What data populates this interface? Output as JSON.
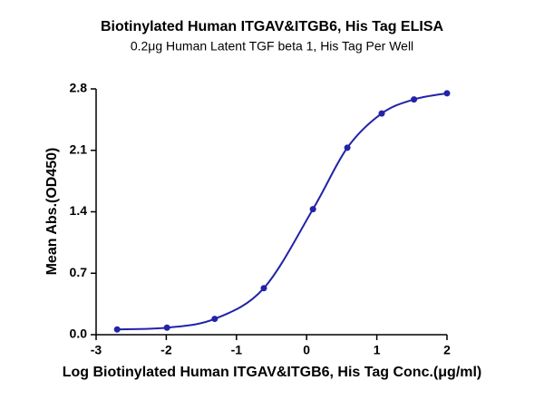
{
  "chart_data": {
    "type": "scatter",
    "title": "Biotinylated Human ITGAV&ITGB6, His Tag ELISA",
    "subtitle": "0.2μg Human Latent TGF beta 1, His Tag Per Well",
    "x_label": "Log Biotinylated Human ITGAV&ITGB6, His Tag Conc.(μg/ml)",
    "y_label": "Mean Abs.(OD450)",
    "x": [
      -2.7,
      -1.99,
      -1.31,
      -0.61,
      0.09,
      0.58,
      1.07,
      1.53,
      2.0
    ],
    "values": [
      0.06,
      0.08,
      0.18,
      0.53,
      1.43,
      2.13,
      2.52,
      2.68,
      2.75
    ],
    "color": "#2323a8",
    "xlim": [
      -3,
      2
    ],
    "xticks": [
      -3,
      -2,
      -1,
      0,
      1,
      2
    ],
    "ylim": [
      0,
      2.8
    ],
    "yticks": [
      {
        "value": 0,
        "label": "0.0"
      },
      0.7,
      1.4,
      2.1,
      2.8
    ]
  }
}
